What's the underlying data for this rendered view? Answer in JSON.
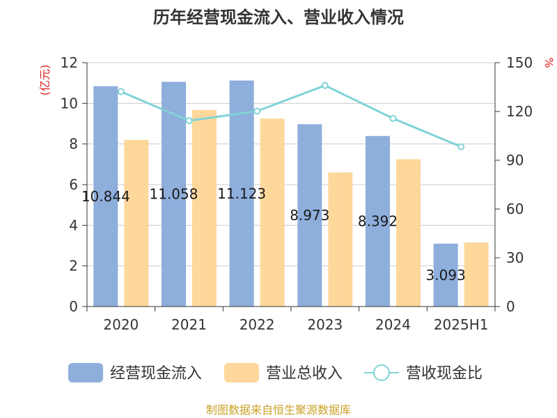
{
  "chart_data": {
    "type": "bar",
    "title": "历年经营现金流入、营业收入情况",
    "categories": [
      "2020",
      "2021",
      "2022",
      "2023",
      "2024",
      "2025H1"
    ],
    "series": [
      {
        "name": "经营现金流入",
        "kind": "bar",
        "axis": "left",
        "color": "#8eaedc",
        "values": [
          10.844,
          11.058,
          11.123,
          8.973,
          8.392,
          3.093
        ],
        "data_labels": [
          "10.844",
          "11.058",
          "11.123",
          "8.973",
          "8.392",
          "3.093"
        ]
      },
      {
        "name": "营业总收入",
        "kind": "bar",
        "axis": "left",
        "color": "#fdd89a",
        "values": [
          8.2,
          9.67,
          9.25,
          6.6,
          7.25,
          3.15
        ]
      },
      {
        "name": "营收现金比",
        "kind": "line",
        "axis": "right",
        "color": "#7fd3d6",
        "values": [
          132.2,
          114.3,
          120.2,
          136.0,
          115.7,
          98.3
        ]
      }
    ],
    "y_left": {
      "unit": "(亿元)",
      "lim": [
        0,
        12
      ],
      "ticks": [
        0,
        2,
        4,
        6,
        8,
        10,
        12
      ]
    },
    "y_right": {
      "unit": "%",
      "lim": [
        0,
        150
      ],
      "ticks": [
        0,
        30,
        60,
        90,
        120,
        150
      ]
    },
    "grid": true,
    "legend_position": "bottom"
  },
  "source": "制图数据来自恒生聚源数据库"
}
